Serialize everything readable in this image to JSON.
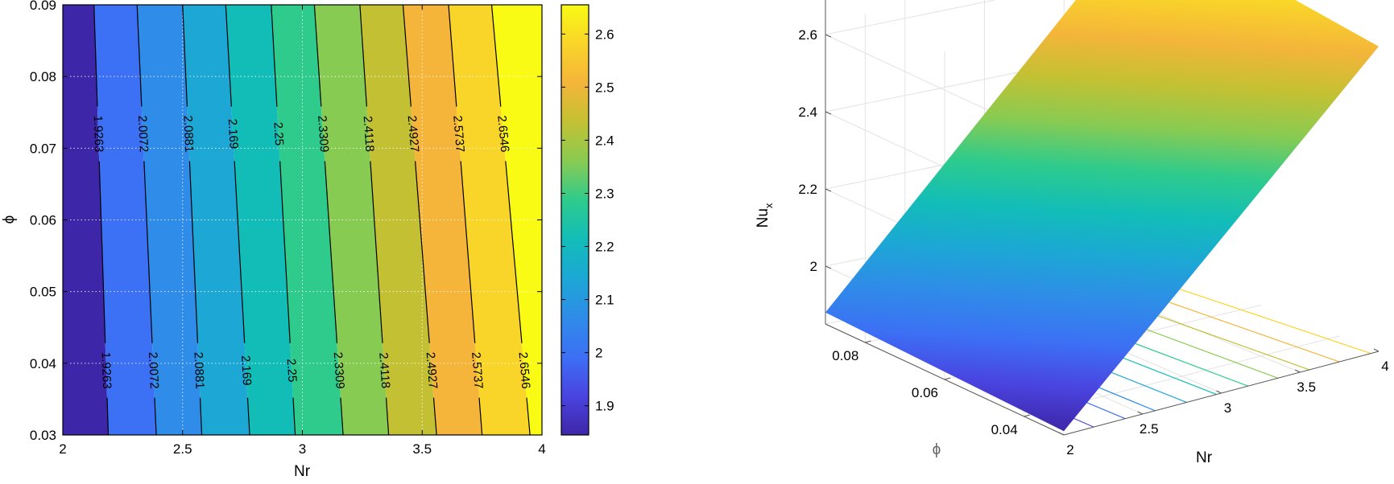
{
  "chart_data": [
    {
      "type": "contour",
      "panel": "left",
      "xlabel": "Nr",
      "ylabel": "ϕ",
      "xlim": [
        2,
        4
      ],
      "ylim": [
        0.03,
        0.09
      ],
      "x_ticks": [
        "2",
        "2.5",
        "3",
        "3.5",
        "4"
      ],
      "y_ticks": [
        "0.03",
        "0.04",
        "0.05",
        "0.06",
        "0.07",
        "0.08",
        "0.09"
      ],
      "grid": true,
      "colorbar": {
        "range": [
          1.845,
          2.655
        ],
        "ticks": [
          "1.9",
          "2",
          "2.1",
          "2.2",
          "2.3",
          "2.4",
          "2.5",
          "2.6"
        ],
        "colormap": [
          "#3e26a8",
          "#4a44e0",
          "#3c70f5",
          "#2f8ce8",
          "#1ca7d5",
          "#12bdb8",
          "#2ecb8c",
          "#88cb52",
          "#c3c133",
          "#f4b53a",
          "#f9d429",
          "#f9fb14"
        ]
      },
      "contour_levels": [
        {
          "value": "1.9263",
          "nr_at_phi_0.03": 2.19,
          "nr_at_phi_0.09": 2.13
        },
        {
          "value": "2.0072",
          "nr_at_phi_0.03": 2.39,
          "nr_at_phi_0.09": 2.31
        },
        {
          "value": "2.0881",
          "nr_at_phi_0.03": 2.58,
          "nr_at_phi_0.09": 2.5
        },
        {
          "value": "2.169",
          "nr_at_phi_0.03": 2.78,
          "nr_at_phi_0.09": 2.68
        },
        {
          "value": "2.25",
          "nr_at_phi_0.03": 2.97,
          "nr_at_phi_0.09": 2.87
        },
        {
          "value": "2.3309",
          "nr_at_phi_0.03": 3.17,
          "nr_at_phi_0.09": 3.05
        },
        {
          "value": "2.4118",
          "nr_at_phi_0.03": 3.36,
          "nr_at_phi_0.09": 3.24
        },
        {
          "value": "2.4927",
          "nr_at_phi_0.03": 3.56,
          "nr_at_phi_0.09": 3.42
        },
        {
          "value": "2.5737",
          "nr_at_phi_0.03": 3.75,
          "nr_at_phi_0.09": 3.61
        },
        {
          "value": "2.6546",
          "nr_at_phi_0.03": 3.95,
          "nr_at_phi_0.09": 3.79
        }
      ],
      "contour_label_phi": [
        0.072,
        0.039
      ]
    },
    {
      "type": "surface",
      "panel": "right",
      "zlabel": "Nu",
      "zlabel_subscript": "x",
      "xlabel": "Nr",
      "ylabel": "ϕ",
      "xlim": [
        2,
        4
      ],
      "ylim": [
        0.03,
        0.09
      ],
      "zlim": [
        1.85,
        2.7
      ],
      "z_ticks": [
        "2",
        "2.2",
        "2.4",
        "2.6"
      ],
      "x_ticks": [
        "2",
        "2.5",
        "3",
        "3.5",
        "4"
      ],
      "y_ticks": [
        "0.04",
        "0.06",
        "0.08"
      ],
      "z_at_corners": {
        "nr2_phi0.03": 1.86,
        "nr2_phi0.09": 1.88,
        "nr4_phi0.03": 2.64,
        "nr4_phi0.09": 2.74
      },
      "floor_contour_count": 10,
      "grid": true
    }
  ]
}
